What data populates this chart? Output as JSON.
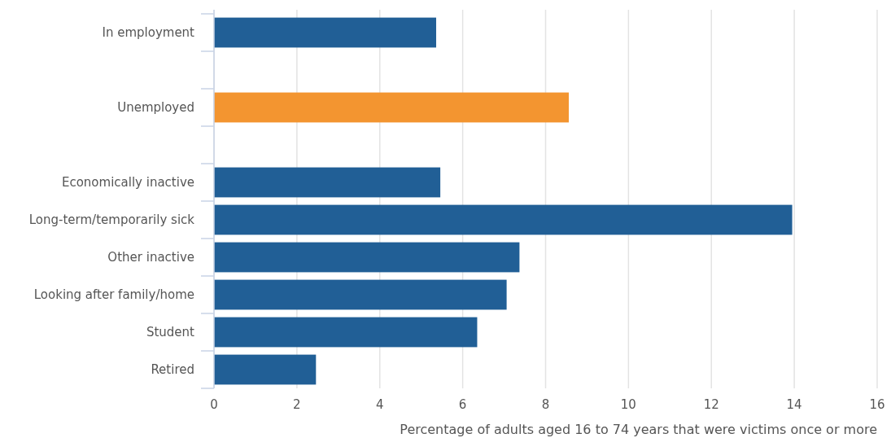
{
  "chart_data": {
    "type": "bar",
    "orientation": "horizontal",
    "categories": [
      "In employment",
      null,
      "Unemployed",
      null,
      "Economically inactive",
      "Long-term/temporarily sick",
      "Other inactive",
      "Looking after family/home",
      "Student",
      "Retired"
    ],
    "values": [
      5.36,
      null,
      8.56,
      null,
      5.46,
      13.95,
      7.37,
      7.06,
      6.35,
      2.46
    ],
    "colors": [
      "#215f96",
      null,
      "#f39530",
      null,
      "#215f96",
      "#215f96",
      "#215f96",
      "#215f96",
      "#215f96",
      "#215f96"
    ],
    "xlim": [
      0,
      16
    ],
    "xticks": [
      0,
      2,
      4,
      6,
      8,
      10,
      12,
      14,
      16
    ],
    "xlabel": "Percentage of adults aged 16 to 74 years that were victims once or more",
    "grid": "x"
  }
}
